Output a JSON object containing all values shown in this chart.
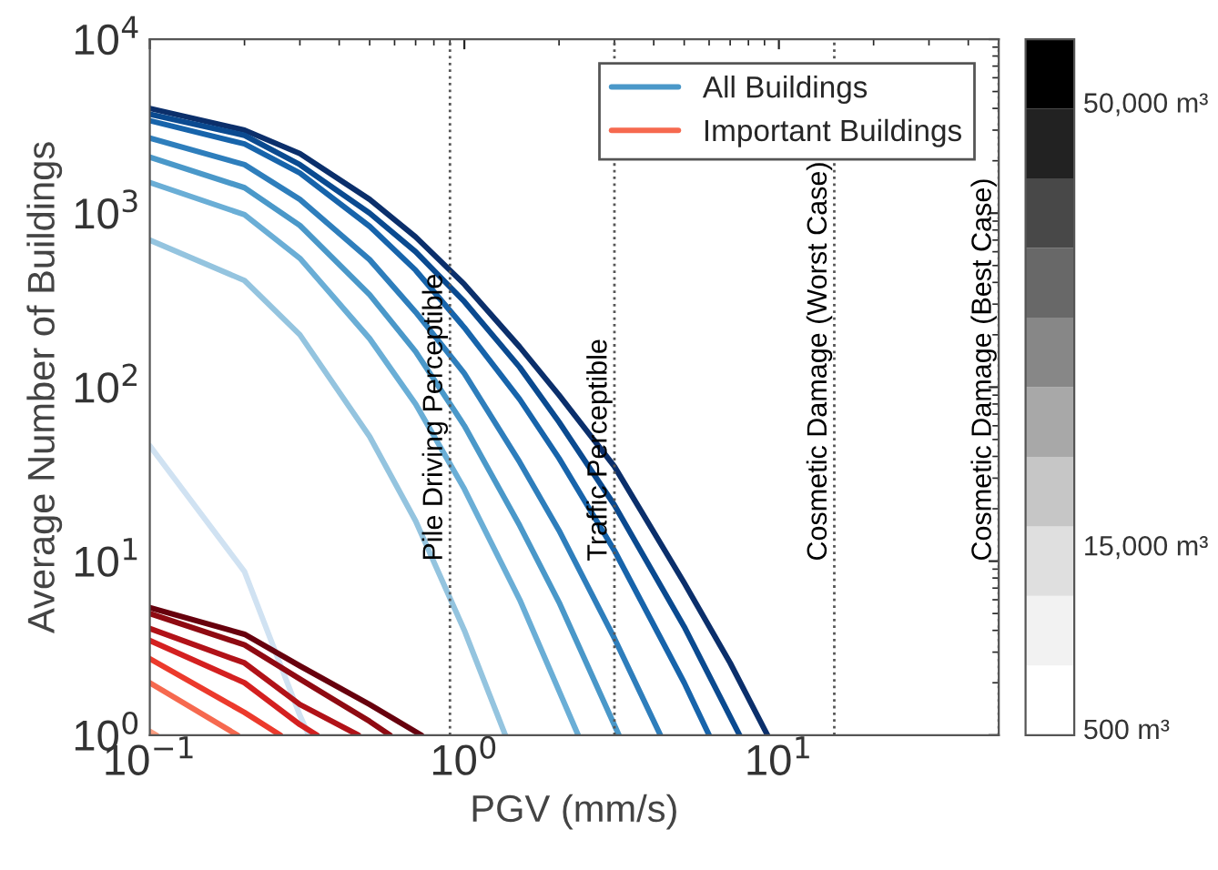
{
  "chart_data": {
    "type": "line",
    "xlabel": "PGV (mm/s)",
    "ylabel": "Average Number of Buildings",
    "log": "xy",
    "xlim": [
      0.1,
      50
    ],
    "ylim": [
      1,
      10000
    ],
    "xticks": [
      {
        "value": 0.1,
        "label": "10$^{−1}$"
      },
      {
        "value": 1,
        "label": "10$^{0}$"
      },
      {
        "value": 10,
        "label": "10$^{1}$"
      }
    ],
    "yticks": [
      {
        "value": 1,
        "label": "10$^{0}$"
      },
      {
        "value": 10,
        "label": "10$^{1}$"
      },
      {
        "value": 100,
        "label": "10$^{2}$"
      },
      {
        "value": 1000,
        "label": "10$^{3}$"
      },
      {
        "value": 10000,
        "label": "10$^{4}$"
      }
    ],
    "grid": false,
    "legend": "top right",
    "marker": "none",
    "line_style": "solid",
    "clim": [
      0,
      55000
    ],
    "cticks": [
      {
        "value": 500,
        "label": "500 m³"
      },
      {
        "value": 15000,
        "label": "15,000 m³"
      },
      {
        "value": 50000,
        "label": "50,000 m³"
      }
    ],
    "series": [
      {
        "color": "#0b2f6b",
        "x": [
          0.1,
          0.2,
          0.3,
          0.5,
          0.7,
          1,
          1.5,
          2,
          3,
          5,
          7,
          9.2
        ],
        "values": [
          4000,
          3000,
          2200,
          1200,
          730,
          390,
          170,
          90,
          35,
          7.5,
          2.6,
          1
        ]
      },
      {
        "color": "#0a4a90",
        "x": [
          0.1,
          0.2,
          0.3,
          0.5,
          0.7,
          1,
          1.5,
          2,
          3,
          5,
          7.5
        ],
        "values": [
          3700,
          2800,
          1900,
          1000,
          600,
          310,
          130,
          63,
          21,
          4.2,
          1
        ]
      },
      {
        "color": "#1764ab",
        "x": [
          0.1,
          0.2,
          0.3,
          0.5,
          0.7,
          1,
          1.5,
          2,
          3,
          5,
          6
        ],
        "values": [
          3400,
          2500,
          1700,
          840,
          470,
          220,
          85,
          39,
          11.5,
          2,
          1
        ]
      },
      {
        "color": "#2e7ebc",
        "x": [
          0.1,
          0.2,
          0.3,
          0.5,
          0.7,
          1,
          1.5,
          2,
          3,
          4.2
        ],
        "values": [
          2700,
          1900,
          1200,
          540,
          270,
          120,
          37,
          15,
          3.6,
          1
        ]
      },
      {
        "name": "All Buildings",
        "color": "#4a98c9",
        "x": [
          0.1,
          0.2,
          0.3,
          0.5,
          0.7,
          1,
          1.5,
          2,
          3.1
        ],
        "values": [
          2100,
          1400,
          850,
          340,
          160,
          60,
          16,
          5.8,
          1
        ]
      },
      {
        "color": "#6aaed6",
        "x": [
          0.1,
          0.2,
          0.3,
          0.5,
          0.7,
          1,
          1.5,
          2.3
        ],
        "values": [
          1500,
          980,
          550,
          190,
          80,
          26,
          6,
          1
        ]
      },
      {
        "color": "#94c4df",
        "x": [
          0.1,
          0.2,
          0.3,
          0.5,
          0.7,
          1,
          1.35
        ],
        "values": [
          700,
          410,
          200,
          52,
          17,
          4,
          1
        ]
      },
      {
        "color": "#d0e2f2",
        "x": [
          0.1,
          0.2,
          0.3,
          0.32
        ],
        "values": [
          46,
          8.7,
          1.3,
          1
        ]
      },
      {
        "color": "#67000d",
        "x": [
          0.1,
          0.2,
          0.3,
          0.5,
          0.73
        ],
        "values": [
          5.4,
          3.8,
          2.5,
          1.5,
          1
        ]
      },
      {
        "color": "#8f0a12",
        "x": [
          0.1,
          0.2,
          0.3,
          0.5,
          0.58
        ],
        "values": [
          5.0,
          3.3,
          2.1,
          1.2,
          1
        ]
      },
      {
        "color": "#b11218",
        "x": [
          0.1,
          0.2,
          0.3,
          0.46
        ],
        "values": [
          4.1,
          2.6,
          1.5,
          1
        ]
      },
      {
        "color": "#d42020",
        "x": [
          0.1,
          0.2,
          0.3,
          0.34
        ],
        "values": [
          3.5,
          2.0,
          1.15,
          1
        ]
      },
      {
        "color": "#ec3a2c",
        "x": [
          0.1,
          0.2,
          0.26
        ],
        "values": [
          2.75,
          1.35,
          1
        ]
      },
      {
        "name": "Important Buildings",
        "color": "#f6694f",
        "x": [
          0.1,
          0.19
        ],
        "values": [
          2.0,
          1
        ]
      },
      {
        "color": "#fc9e80",
        "x": [
          0.1,
          0.105
        ],
        "values": [
          1.05,
          1
        ]
      }
    ],
    "ref_lines": [
      {
        "axis": "x",
        "value": 0.9,
        "label": "Pile Driving Perceptible",
        "color": "#555555",
        "line_style": "dotted"
      },
      {
        "axis": "x",
        "value": 3,
        "label": "Traffic Perceptible",
        "color": "#555555",
        "line_style": "dotted"
      },
      {
        "axis": "x",
        "value": 15,
        "label": "Cosmetic Damage (Worst Case)",
        "color": "#555555",
        "line_style": "dotted"
      },
      {
        "axis": "x",
        "value": 50,
        "label": "Cosmetic Damage (Best Case)",
        "color": "#555555",
        "line_style": "dotted"
      }
    ]
  }
}
